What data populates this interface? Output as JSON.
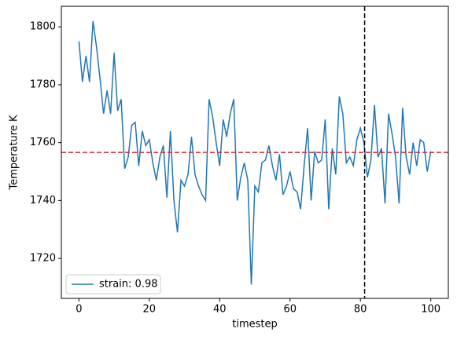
{
  "chart_data": {
    "type": "line",
    "x_label": "timestep",
    "y_label": "Temperature K",
    "x": [
      0,
      1,
      2,
      3,
      4,
      5,
      6,
      7,
      8,
      9,
      10,
      11,
      12,
      13,
      14,
      15,
      16,
      17,
      18,
      19,
      20,
      21,
      22,
      23,
      24,
      25,
      26,
      27,
      28,
      29,
      30,
      31,
      32,
      33,
      34,
      35,
      36,
      37,
      38,
      39,
      40,
      41,
      42,
      43,
      44,
      45,
      46,
      47,
      48,
      49,
      50,
      51,
      52,
      53,
      54,
      55,
      56,
      57,
      58,
      59,
      60,
      61,
      62,
      63,
      64,
      65,
      66,
      67,
      68,
      69,
      70,
      71,
      72,
      73,
      74,
      75,
      76,
      77,
      78,
      79,
      80,
      81,
      82,
      83,
      84,
      85,
      86,
      87,
      88,
      89,
      90,
      91,
      92,
      93,
      94,
      95,
      96,
      97,
      98,
      99,
      100
    ],
    "series": [
      {
        "name": "strain: 0.98",
        "color": "#1f77b4",
        "values": [
          1795,
          1781,
          1790,
          1781,
          1802,
          1793,
          1782,
          1770,
          1778,
          1770,
          1791,
          1771,
          1775,
          1751,
          1755,
          1766,
          1767,
          1752,
          1764,
          1759,
          1761,
          1753,
          1747,
          1755,
          1759,
          1741,
          1764,
          1740,
          1729,
          1747,
          1745,
          1749,
          1762,
          1749,
          1745,
          1742,
          1740,
          1775,
          1769,
          1760,
          1752,
          1768,
          1762,
          1770,
          1775,
          1740,
          1748,
          1753,
          1747,
          1711,
          1745,
          1743,
          1753,
          1754,
          1759,
          1752,
          1747,
          1756,
          1742,
          1745,
          1750,
          1744,
          1743,
          1737,
          1752,
          1765,
          1740,
          1757,
          1753,
          1754,
          1768,
          1737,
          1758,
          1749,
          1776,
          1770,
          1753,
          1755,
          1752,
          1761,
          1765,
          1760,
          1748,
          1754,
          1773,
          1755,
          1758,
          1739,
          1770,
          1763,
          1755,
          1739,
          1772,
          1755,
          1749,
          1760,
          1752,
          1761,
          1760,
          1750,
          1757
        ]
      }
    ],
    "hline": {
      "value": 1756.6,
      "color": "#d62728"
    },
    "vline": {
      "value": 81.2,
      "color": "#000000"
    },
    "xlim": [
      -5,
      105
    ],
    "ylim": [
      1706.2,
      1807.1
    ],
    "xticks": [
      0,
      20,
      40,
      60,
      80,
      100
    ],
    "yticks": [
      1720,
      1740,
      1760,
      1780,
      1800
    ],
    "legend": "lower left",
    "grid": false
  }
}
